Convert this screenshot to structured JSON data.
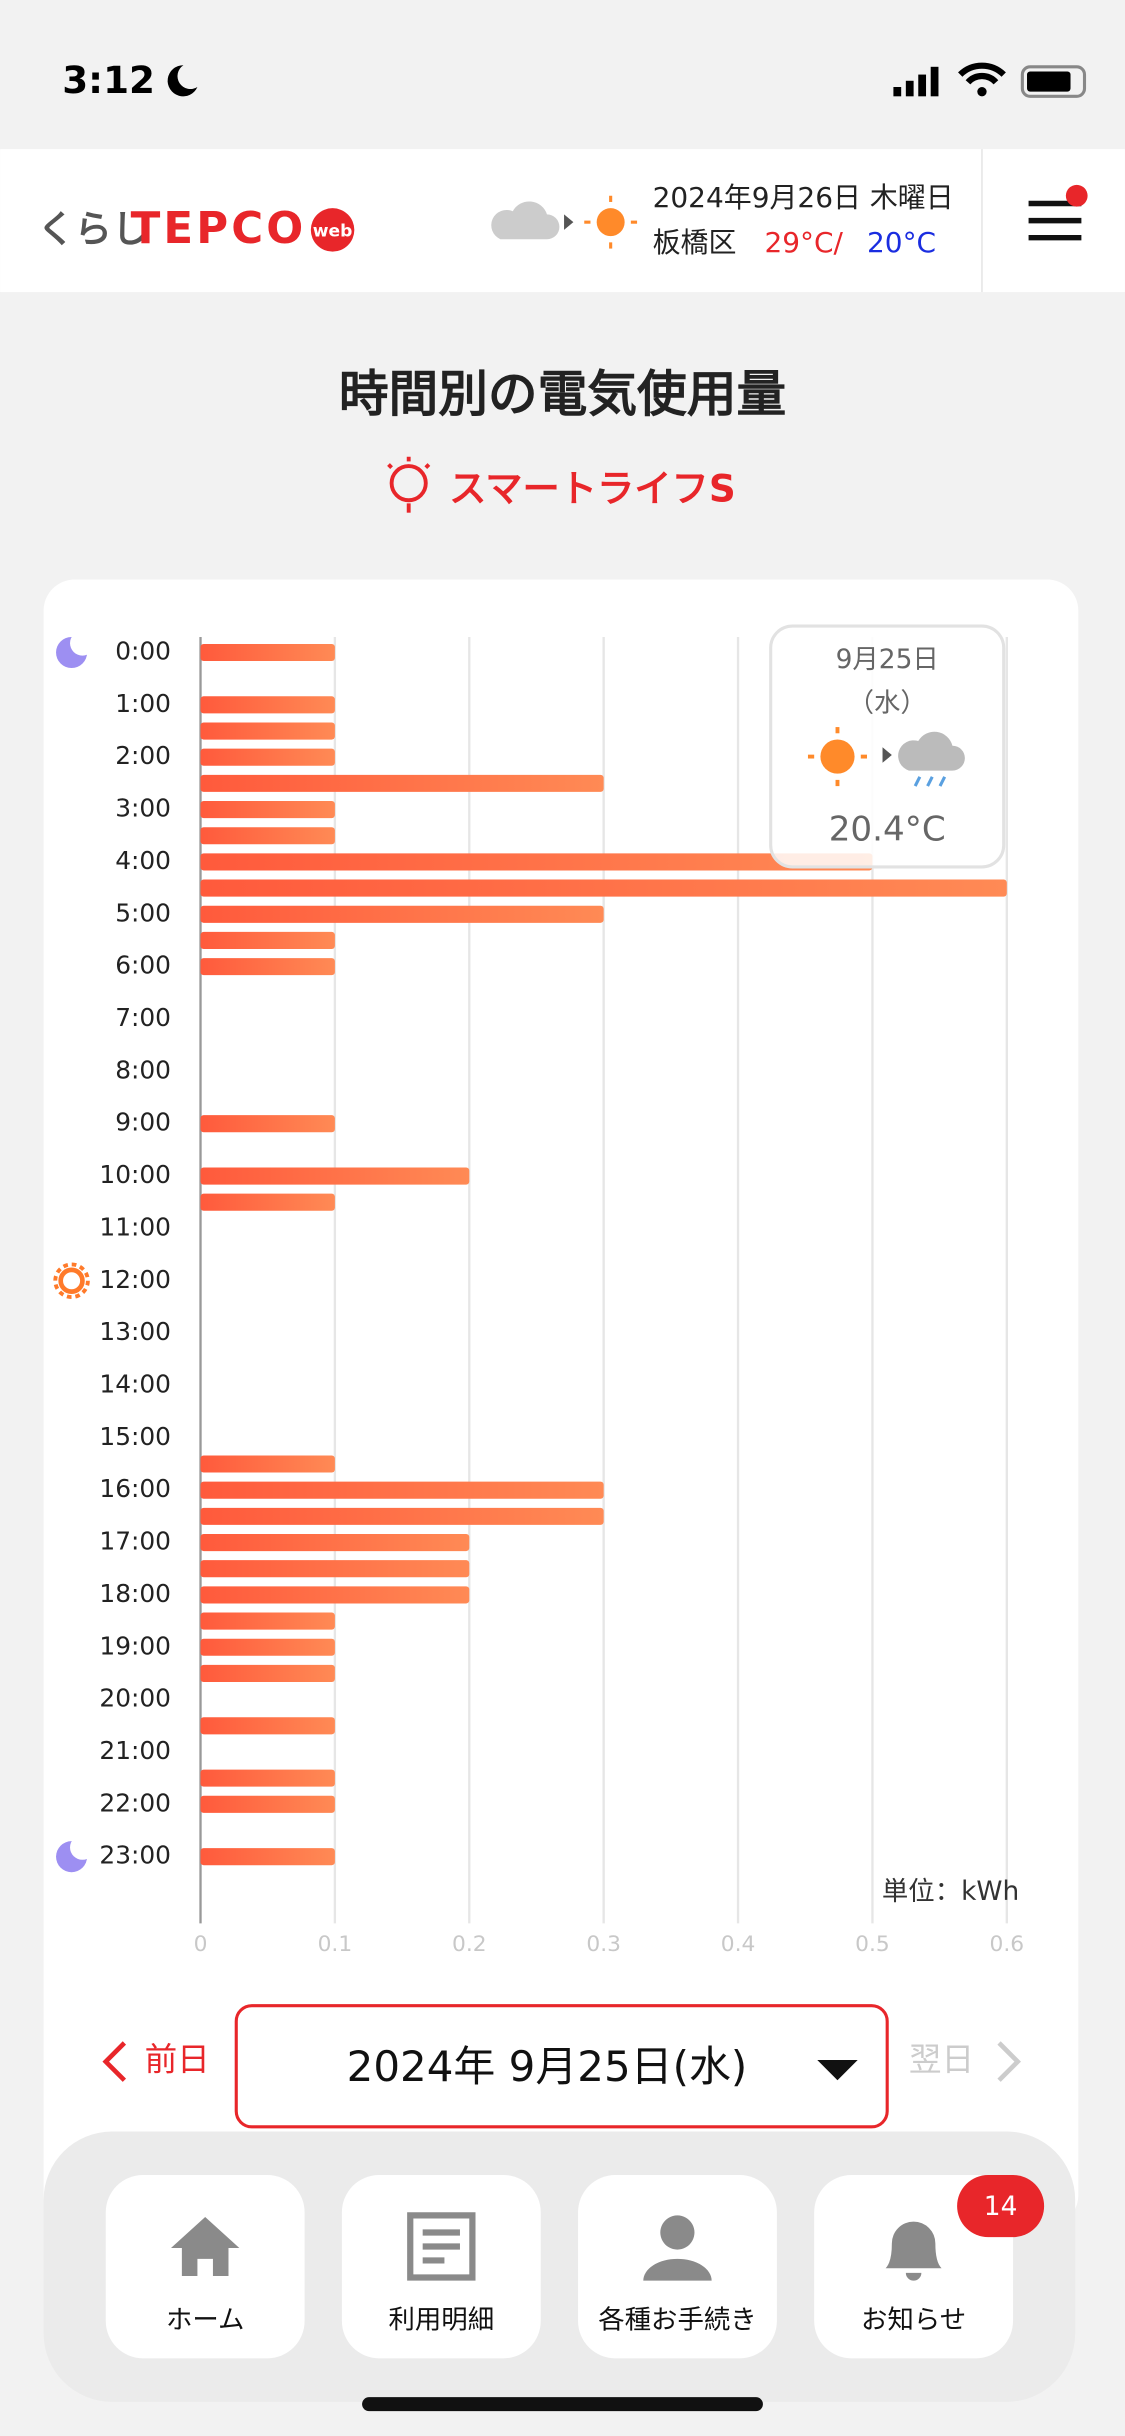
{
  "status_bar": {
    "time": "3:12"
  },
  "header": {
    "logo_kana": "くらし",
    "logo_brand": "TEPCO",
    "logo_badge": "web",
    "date": "2024年9月26日 木曜日",
    "area": "板橋区",
    "high": "29°C/",
    "low": "20°C"
  },
  "page": {
    "title": "時間別の電気使用量",
    "plan": "スマートライフS"
  },
  "chart_data": {
    "type": "bar",
    "orientation": "horizontal",
    "categories": [
      "0:00",
      null,
      "1:00",
      null,
      "2:00",
      null,
      "3:00",
      null,
      "4:00",
      null,
      "5:00",
      null,
      "6:00",
      null,
      "7:00",
      null,
      "8:00",
      null,
      "9:00",
      null,
      "10:00",
      null,
      "11:00",
      null,
      "12:00",
      null,
      "13:00",
      null,
      "14:00",
      null,
      "15:00",
      null,
      "16:00",
      null,
      "17:00",
      null,
      "18:00",
      null,
      "19:00",
      null,
      "20:00",
      null,
      "21:00",
      null,
      "22:00",
      null,
      "23:00",
      null
    ],
    "series": [
      {
        "name": "使用量",
        "color": "#ff5f40",
        "values": [
          0.1,
          0,
          0.1,
          0.1,
          0.1,
          0.3,
          0.1,
          0.1,
          0.5,
          0.6,
          0.3,
          0.1,
          0.1,
          0,
          0,
          0,
          0,
          0,
          0.1,
          0,
          0.2,
          0.1,
          0,
          0,
          0,
          0,
          0,
          0,
          0,
          0,
          0,
          0.1,
          0.3,
          0.3,
          0.2,
          0.2,
          0.2,
          0.1,
          0.1,
          0.1,
          0,
          0.1,
          0,
          0.1,
          0.1,
          0,
          0.1,
          0
        ]
      }
    ],
    "xlim": [
      0,
      0.6
    ],
    "xticks": [
      0,
      0.1,
      0.2,
      0.3,
      0.4,
      0.5,
      0.6
    ],
    "grid": true,
    "unit_label": "単位：kWh",
    "tooltip": {
      "date": "9月25日",
      "weekday": "（水）",
      "temperature": "20.4°C"
    }
  },
  "date_nav": {
    "prev": "前日",
    "selected": "2024年 9月25日(水)",
    "next": "翌日"
  },
  "tab_bar": {
    "tabs": [
      "ホーム",
      "利用明細",
      "各種お手続き",
      "お知らせ"
    ],
    "badge": 14
  }
}
